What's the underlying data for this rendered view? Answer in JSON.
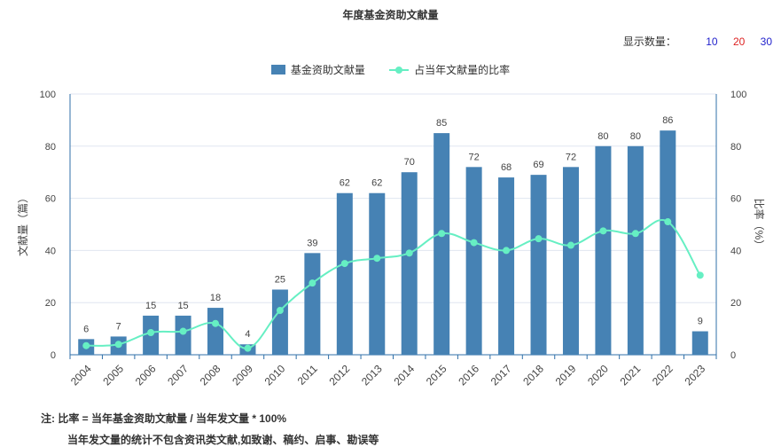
{
  "page": {
    "title": "年度基金资助文献量",
    "count_label": "显示数量：",
    "count_options": [
      {
        "label": "10",
        "color": "#2222cc"
      },
      {
        "label": "20",
        "color": "#dd2222"
      },
      {
        "label": "30",
        "color": "#2222cc"
      }
    ],
    "notes": [
      "注:   比率 = 当年基金资助文献量 / 当年发文量 * 100%",
      "当年发文量的统计不包含资讯类文献,如致谢、稿约、启事、勘误等"
    ]
  },
  "chart_data": {
    "type": "bar",
    "categories": [
      "2004",
      "2005",
      "2006",
      "2007",
      "2008",
      "2009",
      "2010",
      "2011",
      "2012",
      "2013",
      "2014",
      "2015",
      "2016",
      "2017",
      "2018",
      "2019",
      "2020",
      "2021",
      "2022",
      "2023"
    ],
    "series": [
      {
        "name": "基金资助文献量",
        "type": "bar",
        "axis": "left",
        "color": "#4682b4",
        "values": [
          6,
          7,
          15,
          15,
          18,
          4,
          25,
          39,
          62,
          62,
          70,
          85,
          72,
          68,
          69,
          72,
          80,
          80,
          86,
          9
        ]
      },
      {
        "name": "占当年文献量的比率",
        "type": "line",
        "axis": "right",
        "color": "#66efc3",
        "values": [
          3.5,
          4,
          8.5,
          9,
          12,
          2.5,
          17,
          27.5,
          35,
          37,
          39,
          46.5,
          43,
          40,
          44.5,
          42,
          47.5,
          46.5,
          51,
          30.5
        ]
      }
    ],
    "ylabel_left": "文献量（篇）",
    "ylabel_right": "比率（%）",
    "ylim_left": [
      0,
      100
    ],
    "ylim_right": [
      0,
      100
    ],
    "yticks": [
      "0",
      "20",
      "40",
      "60",
      "80",
      "100"
    ],
    "grid": true,
    "legend": "top-center",
    "data_labels": true
  }
}
